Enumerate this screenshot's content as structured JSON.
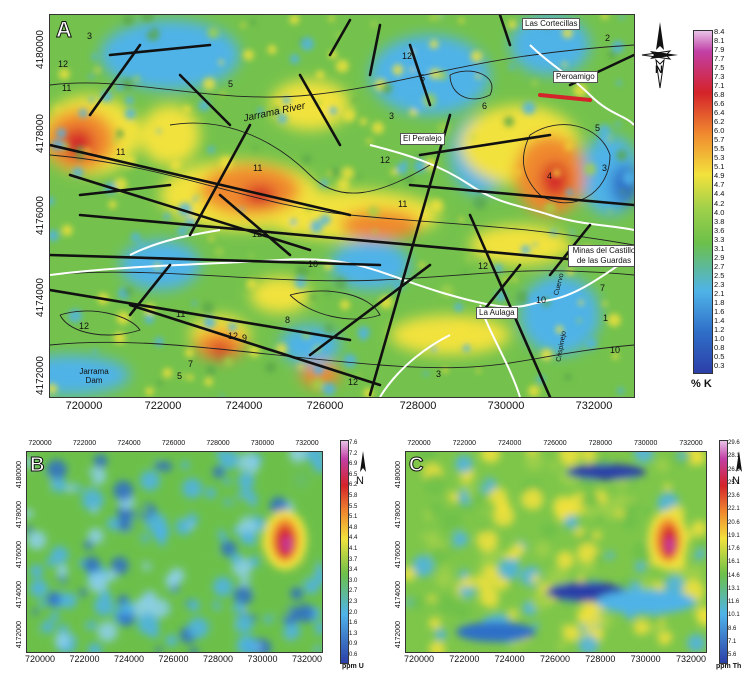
{
  "panelA": {
    "letter": "A",
    "y_ticks": [
      "4180000",
      "4178000",
      "4176000",
      "4174000",
      "4172000"
    ],
    "x_ticks": [
      "720000",
      "722000",
      "724000",
      "726000",
      "728000",
      "730000",
      "732000"
    ],
    "places": [
      "Las Cortecillas",
      "Peroamigo",
      "El Peralejo",
      "Minas del Castillo de las Guardas",
      "La Aulaga"
    ],
    "river": "Jarrama River",
    "dam": "Jarrama Dam",
    "stream_labels": [
      "Cuervo",
      "Crispinejo"
    ],
    "unit_labels": [
      "3",
      "2",
      "12",
      "11",
      "5",
      "12",
      "5",
      "6",
      "5",
      "3",
      "11",
      "12",
      "11",
      "4",
      "3",
      "11",
      "12",
      "12",
      "10",
      "10",
      "7",
      "12",
      "11",
      "8",
      "9",
      "5",
      "7",
      "12",
      "12",
      "3",
      "10",
      "1"
    ],
    "north": "N",
    "colorbar_unit": "% K",
    "colorbar_ticks": [
      "8.4",
      "8.1",
      "7.9",
      "7.7",
      "7.5",
      "7.3",
      "7.1",
      "6.8",
      "6.6",
      "6.4",
      "6.2",
      "6.0",
      "5.7",
      "5.5",
      "5.3",
      "5.1",
      "4.9",
      "4.7",
      "4.4",
      "4.2",
      "4.0",
      "3.8",
      "3.6",
      "3.3",
      "3.1",
      "2.9",
      "2.7",
      "2.5",
      "2.3",
      "2.1",
      "1.8",
      "1.6",
      "1.4",
      "1.2",
      "1.0",
      "0.8",
      "0.5",
      "0.3"
    ]
  },
  "panelB": {
    "letter": "B",
    "y_ticks": [
      "4180000",
      "4178000",
      "4176000",
      "4174000",
      "4172000"
    ],
    "x_ticks": [
      "720000",
      "722000",
      "724000",
      "726000",
      "728000",
      "730000",
      "732000"
    ],
    "north": "N",
    "colorbar_unit": "ppm U",
    "colorbar_ticks": [
      "7.6",
      "7.2",
      "6.9",
      "6.5",
      "6.2",
      "5.8",
      "5.5",
      "5.1",
      "4.8",
      "4.4",
      "4.1",
      "3.7",
      "3.4",
      "3.0",
      "2.7",
      "2.3",
      "2.0",
      "1.6",
      "1.3",
      "0.9",
      "0.6"
    ]
  },
  "panelC": {
    "letter": "C",
    "y_ticks": [
      "4180000",
      "4178000",
      "4176000",
      "4174000",
      "4172000"
    ],
    "x_ticks": [
      "720000",
      "722000",
      "724000",
      "726000",
      "728000",
      "730000",
      "732000"
    ],
    "north": "N",
    "colorbar_unit": "ppm Th",
    "colorbar_ticks": [
      "29.6",
      "28.1",
      "26.6",
      "25.1",
      "23.6",
      "22.1",
      "20.6",
      "19.1",
      "17.6",
      "16.1",
      "14.6",
      "13.1",
      "11.6",
      "10.1",
      "8.6",
      "7.1",
      "5.6"
    ]
  },
  "colors": {
    "low": "#2c3fa8",
    "mid_low": "#4fb3e8",
    "mid": "#6cc04a",
    "mid_high": "#f2e23c",
    "high": "#f0892f",
    "max": "#d4232a",
    "peak": "#c23fa5",
    "fault": "#111111",
    "road": "#ffffff"
  }
}
